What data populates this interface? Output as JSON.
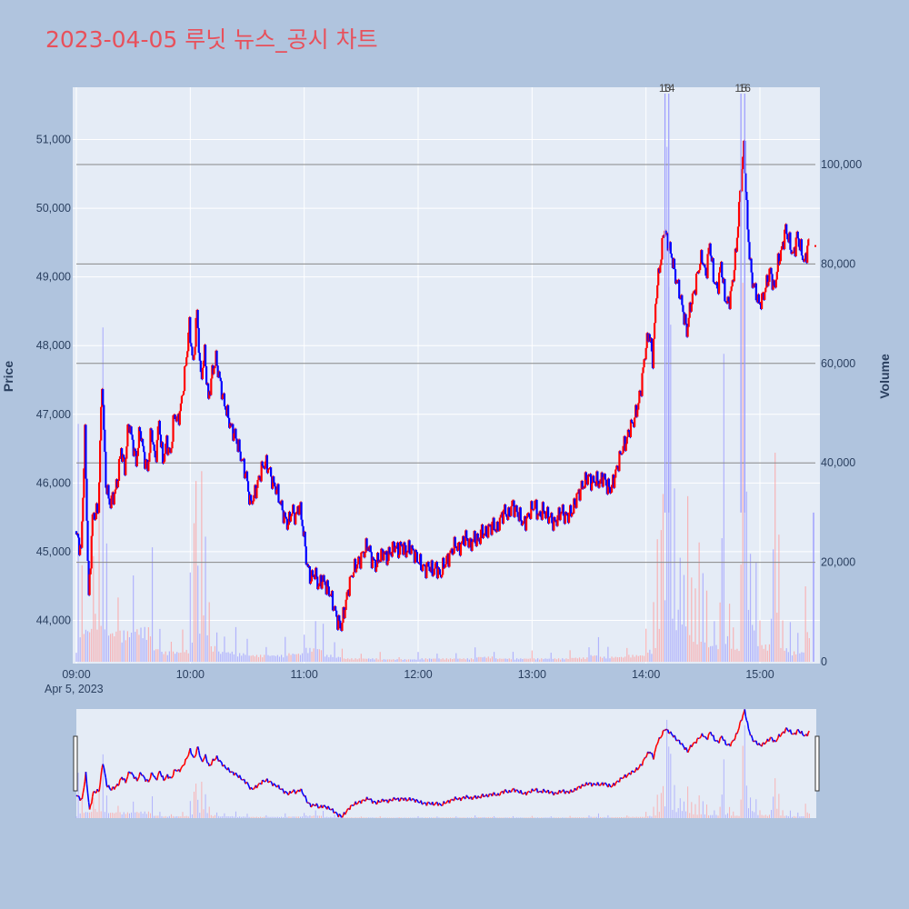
{
  "title": "2023-04-05 루닛 뉴스_공시 차트",
  "colors": {
    "up": "#ff0000",
    "down": "#0000ff",
    "title": "#e8505b",
    "plot_bg": "#e5ecf6",
    "page_bg": "#b0c4de"
  },
  "chart_data": {
    "type": "candlestick",
    "xlabel": "",
    "ylabel": "Price",
    "y2label": "Volume",
    "date_label": "Apr 5, 2023",
    "x_ticks": [
      "09:00",
      "10:00",
      "11:00",
      "12:00",
      "13:00",
      "14:00",
      "15:00"
    ],
    "y_ticks": [
      "44,000",
      "45,000",
      "46,000",
      "47,000",
      "48,000",
      "49,000",
      "50,000",
      "51,000"
    ],
    "y_tick_values": [
      44000,
      45000,
      46000,
      47000,
      48000,
      49000,
      50000,
      51000
    ],
    "y2_ticks": [
      "0",
      "20,000",
      "40,000",
      "60,000",
      "80,000",
      "100,000"
    ],
    "y2_tick_values": [
      0,
      20000,
      40000,
      60000,
      80000,
      100000
    ],
    "ylim": [
      43400,
      51750
    ],
    "y2lim": [
      0,
      115000
    ],
    "xlim_minutes": [
      0,
      395
    ],
    "price_path": [
      [
        0,
        45300
      ],
      [
        3,
        45000
      ],
      [
        5,
        46700
      ],
      [
        7,
        44300
      ],
      [
        9,
        45500
      ],
      [
        12,
        45600
      ],
      [
        14,
        47500
      ],
      [
        16,
        46000
      ],
      [
        18,
        45700
      ],
      [
        20,
        45800
      ],
      [
        22,
        46000
      ],
      [
        24,
        46500
      ],
      [
        26,
        46200
      ],
      [
        28,
        46900
      ],
      [
        30,
        46600
      ],
      [
        32,
        46300
      ],
      [
        34,
        46800
      ],
      [
        36,
        46400
      ],
      [
        38,
        46200
      ],
      [
        40,
        46800
      ],
      [
        42,
        46300
      ],
      [
        44,
        46900
      ],
      [
        46,
        46300
      ],
      [
        48,
        46600
      ],
      [
        50,
        46400
      ],
      [
        52,
        47000
      ],
      [
        54,
        46900
      ],
      [
        56,
        47200
      ],
      [
        58,
        47700
      ],
      [
        60,
        48300
      ],
      [
        62,
        47700
      ],
      [
        64,
        48500
      ],
      [
        66,
        47500
      ],
      [
        68,
        47900
      ],
      [
        70,
        47200
      ],
      [
        72,
        47600
      ],
      [
        74,
        47800
      ],
      [
        76,
        47500
      ],
      [
        78,
        47200
      ],
      [
        80,
        47000
      ],
      [
        82,
        46800
      ],
      [
        84,
        46700
      ],
      [
        86,
        46500
      ],
      [
        88,
        46300
      ],
      [
        90,
        46100
      ],
      [
        92,
        45700
      ],
      [
        94,
        45800
      ],
      [
        96,
        46000
      ],
      [
        98,
        46200
      ],
      [
        100,
        46300
      ],
      [
        102,
        46200
      ],
      [
        104,
        46000
      ],
      [
        106,
        45900
      ],
      [
        108,
        45700
      ],
      [
        110,
        45500
      ],
      [
        112,
        45400
      ],
      [
        114,
        45600
      ],
      [
        116,
        45500
      ],
      [
        118,
        45700
      ],
      [
        120,
        45300
      ],
      [
        122,
        44800
      ],
      [
        124,
        44600
      ],
      [
        126,
        44700
      ],
      [
        128,
        44500
      ],
      [
        130,
        44600
      ],
      [
        132,
        44500
      ],
      [
        134,
        44400
      ],
      [
        136,
        44200
      ],
      [
        138,
        44000
      ],
      [
        140,
        43900
      ],
      [
        142,
        44200
      ],
      [
        144,
        44500
      ],
      [
        146,
        44700
      ],
      [
        148,
        44800
      ],
      [
        150,
        44900
      ],
      [
        152,
        45000
      ],
      [
        154,
        45100
      ],
      [
        156,
        44900
      ],
      [
        158,
        44800
      ],
      [
        160,
        44900
      ],
      [
        162,
        45000
      ],
      [
        164,
        44900
      ],
      [
        166,
        45000
      ],
      [
        168,
        45100
      ],
      [
        170,
        45000
      ],
      [
        172,
        45100
      ],
      [
        174,
        45000
      ],
      [
        176,
        45050
      ],
      [
        178,
        45000
      ],
      [
        180,
        44900
      ],
      [
        182,
        44800
      ],
      [
        184,
        44750
      ],
      [
        186,
        44800
      ],
      [
        188,
        44700
      ],
      [
        190,
        44800
      ],
      [
        192,
        44650
      ],
      [
        194,
        44800
      ],
      [
        196,
        44900
      ],
      [
        198,
        45000
      ],
      [
        200,
        45100
      ],
      [
        202,
        45050
      ],
      [
        204,
        45150
      ],
      [
        206,
        45200
      ],
      [
        208,
        45100
      ],
      [
        210,
        45200
      ],
      [
        212,
        45150
      ],
      [
        214,
        45300
      ],
      [
        216,
        45250
      ],
      [
        218,
        45350
      ],
      [
        220,
        45400
      ],
      [
        222,
        45300
      ],
      [
        224,
        45500
      ],
      [
        226,
        45600
      ],
      [
        228,
        45500
      ],
      [
        230,
        45700
      ],
      [
        232,
        45600
      ],
      [
        234,
        45500
      ],
      [
        236,
        45400
      ],
      [
        238,
        45500
      ],
      [
        240,
        45600
      ],
      [
        242,
        45700
      ],
      [
        244,
        45500
      ],
      [
        246,
        45600
      ],
      [
        248,
        45550
      ],
      [
        250,
        45500
      ],
      [
        252,
        45400
      ],
      [
        254,
        45500
      ],
      [
        256,
        45600
      ],
      [
        258,
        45500
      ],
      [
        260,
        45550
      ],
      [
        262,
        45600
      ],
      [
        264,
        45800
      ],
      [
        266,
        45900
      ],
      [
        268,
        46000
      ],
      [
        270,
        46100
      ],
      [
        272,
        46000
      ],
      [
        274,
        46050
      ],
      [
        276,
        46000
      ],
      [
        278,
        46100
      ],
      [
        280,
        45950
      ],
      [
        282,
        45900
      ],
      [
        284,
        46100
      ],
      [
        286,
        46300
      ],
      [
        288,
        46500
      ],
      [
        290,
        46600
      ],
      [
        292,
        46800
      ],
      [
        294,
        46900
      ],
      [
        296,
        47100
      ],
      [
        298,
        47400
      ],
      [
        300,
        47900
      ],
      [
        302,
        48200
      ],
      [
        304,
        47800
      ],
      [
        306,
        48800
      ],
      [
        308,
        49200
      ],
      [
        310,
        49700
      ],
      [
        312,
        49500
      ],
      [
        314,
        49300
      ],
      [
        316,
        49000
      ],
      [
        318,
        48800
      ],
      [
        320,
        48500
      ],
      [
        322,
        48200
      ],
      [
        324,
        48600
      ],
      [
        326,
        48800
      ],
      [
        328,
        49100
      ],
      [
        330,
        49300
      ],
      [
        332,
        49000
      ],
      [
        334,
        49500
      ],
      [
        336,
        49000
      ],
      [
        338,
        48800
      ],
      [
        340,
        49200
      ],
      [
        342,
        48700
      ],
      [
        344,
        48600
      ],
      [
        346,
        48900
      ],
      [
        348,
        49400
      ],
      [
        350,
        50200
      ],
      [
        352,
        50900
      ],
      [
        354,
        49700
      ],
      [
        356,
        49000
      ],
      [
        358,
        48800
      ],
      [
        360,
        48600
      ],
      [
        362,
        48700
      ],
      [
        364,
        48900
      ],
      [
        366,
        49100
      ],
      [
        368,
        48800
      ],
      [
        370,
        49200
      ],
      [
        372,
        49400
      ],
      [
        374,
        49700
      ],
      [
        376,
        49500
      ],
      [
        378,
        49300
      ],
      [
        380,
        49600
      ],
      [
        382,
        49400
      ],
      [
        384,
        49200
      ],
      [
        386,
        49500
      ]
    ],
    "volume_peaks": [
      [
        1,
        48000
      ],
      [
        3,
        20000
      ],
      [
        9,
        28000
      ],
      [
        12,
        32000
      ],
      [
        14,
        68000
      ],
      [
        16,
        25000
      ],
      [
        22,
        18000
      ],
      [
        30,
        20000
      ],
      [
        40,
        24000
      ],
      [
        44,
        8000
      ],
      [
        50,
        6000
      ],
      [
        56,
        7000
      ],
      [
        60,
        18000
      ],
      [
        62,
        28000
      ],
      [
        63,
        51000
      ],
      [
        64,
        20000
      ],
      [
        66,
        42000
      ],
      [
        68,
        30000
      ],
      [
        70,
        16000
      ],
      [
        74,
        9000
      ],
      [
        78,
        6000
      ],
      [
        84,
        7000
      ],
      [
        90,
        5000
      ],
      [
        100,
        4000
      ],
      [
        110,
        5000
      ],
      [
        120,
        8000
      ],
      [
        126,
        10000
      ],
      [
        130,
        8000
      ],
      [
        136,
        4000
      ],
      [
        140,
        3000
      ],
      [
        150,
        2000
      ],
      [
        160,
        2000
      ],
      [
        170,
        1500
      ],
      [
        180,
        2000
      ],
      [
        190,
        2000
      ],
      [
        200,
        2000
      ],
      [
        210,
        3000
      ],
      [
        220,
        3000
      ],
      [
        230,
        2000
      ],
      [
        240,
        3000
      ],
      [
        250,
        2000
      ],
      [
        260,
        2500
      ],
      [
        270,
        4000
      ],
      [
        275,
        6000
      ],
      [
        280,
        3000
      ],
      [
        290,
        4000
      ],
      [
        300,
        7000
      ],
      [
        304,
        12000
      ],
      [
        306,
        25000
      ],
      [
        308,
        28000
      ],
      [
        309,
        40000
      ],
      [
        311,
        113000
      ],
      [
        312,
        94000
      ],
      [
        313,
        70000
      ],
      [
        315,
        35000
      ],
      [
        318,
        30000
      ],
      [
        320,
        22000
      ],
      [
        322,
        38000
      ],
      [
        324,
        18000
      ],
      [
        326,
        15000
      ],
      [
        328,
        24000
      ],
      [
        330,
        18000
      ],
      [
        332,
        15000
      ],
      [
        336,
        10000
      ],
      [
        339,
        12000
      ],
      [
        340,
        40000
      ],
      [
        341,
        62000
      ],
      [
        344,
        15000
      ],
      [
        346,
        8000
      ],
      [
        350,
        20000
      ],
      [
        351,
        112000
      ],
      [
        352,
        98000
      ],
      [
        353,
        55000
      ],
      [
        355,
        30000
      ],
      [
        358,
        22000
      ],
      [
        360,
        10000
      ],
      [
        366,
        13000
      ],
      [
        367,
        23000
      ],
      [
        368,
        55000
      ],
      [
        370,
        30000
      ],
      [
        372,
        9000
      ],
      [
        376,
        8000
      ],
      [
        380,
        6000
      ],
      [
        384,
        18000
      ],
      [
        393,
        30000
      ]
    ],
    "annotations": [
      {
        "text": "13",
        "minute": 310,
        "volume": 113000
      },
      {
        "text": "14",
        "minute": 312,
        "volume": 113000
      },
      {
        "text": "15",
        "minute": 350,
        "volume": 113000
      },
      {
        "text": "16",
        "minute": 352,
        "volume": 113000
      }
    ],
    "horizontal_lines_volume": [
      20000,
      40000,
      60000,
      80000,
      100000
    ],
    "rangeslider": true
  }
}
